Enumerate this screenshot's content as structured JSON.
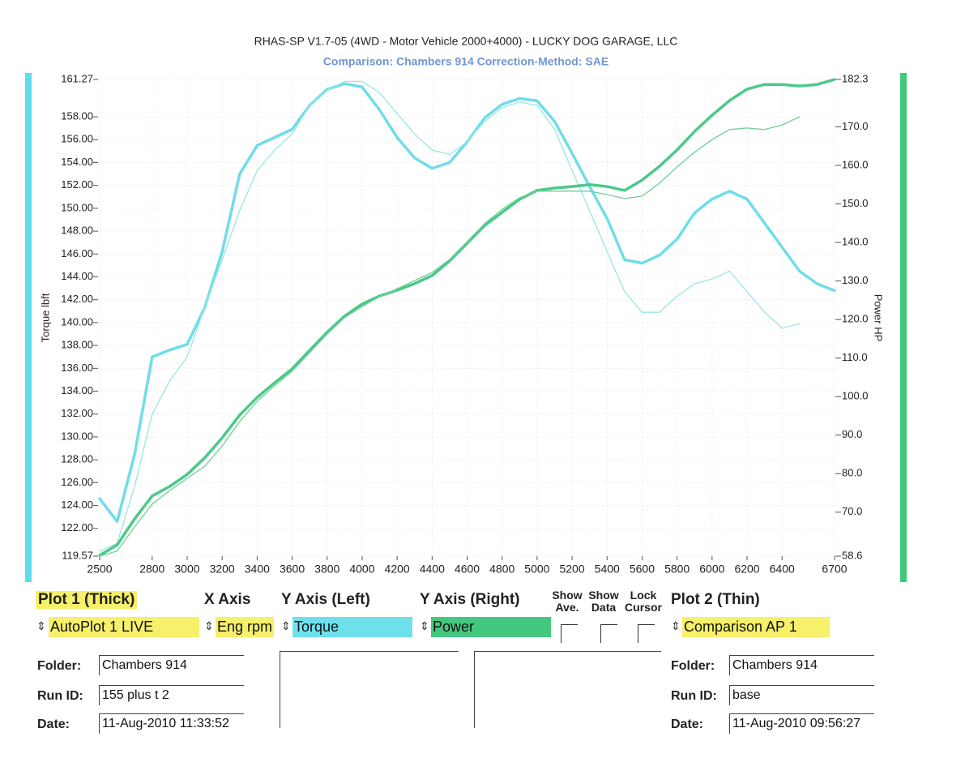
{
  "chart_data": {
    "type": "line",
    "title": "RHAS-SP V1.7-05   (4WD - Motor Vehicle 2000+4000) - LUCKY DOG GARAGE, LLC",
    "subtitle": "Comparison: Chambers 914    Correction-Method: SAE",
    "ylabel": "Torque lbft",
    "y2label": "Power HP",
    "x": [
      2500,
      2600,
      2700,
      2800,
      2900,
      3000,
      3100,
      3200,
      3300,
      3400,
      3500,
      3600,
      3700,
      3800,
      3900,
      4000,
      4100,
      4200,
      4300,
      4400,
      4500,
      4600,
      4700,
      4800,
      4900,
      5000,
      5100,
      5200,
      5300,
      5400,
      5500,
      5600,
      5700,
      5800,
      5900,
      6000,
      6100,
      6200,
      6300,
      6400,
      6500,
      6600,
      6700
    ],
    "xlim": [
      2500,
      6700
    ],
    "xticks": [
      2500,
      2800,
      3000,
      3200,
      3400,
      3600,
      3800,
      4000,
      4200,
      4400,
      4600,
      4800,
      5000,
      5200,
      5400,
      5600,
      5800,
      6000,
      6200,
      6400,
      6700
    ],
    "ylim": [
      119.57,
      161.27
    ],
    "yticks": [
      119.57,
      {
        "value": 122,
        "label": "122.00"
      },
      {
        "value": 124,
        "label": "124.00"
      },
      {
        "value": 126,
        "label": "126.00"
      },
      {
        "value": 128,
        "label": "128.00"
      },
      {
        "value": 130,
        "label": "130.00"
      },
      {
        "value": 132,
        "label": "132.00"
      },
      {
        "value": 134,
        "label": "134.00"
      },
      {
        "value": 136,
        "label": "136.00"
      },
      {
        "value": 138,
        "label": "138.00"
      },
      {
        "value": 140,
        "label": "140.00"
      },
      {
        "value": 142,
        "label": "142.00"
      },
      {
        "value": 144,
        "label": "144.00"
      },
      {
        "value": 146,
        "label": "146.00"
      },
      {
        "value": 148,
        "label": "148.00"
      },
      {
        "value": 150,
        "label": "150.00"
      },
      {
        "value": 152,
        "label": "152.00"
      },
      {
        "value": 154,
        "label": "154.00"
      },
      {
        "value": 156,
        "label": "156.00"
      },
      {
        "value": 158,
        "label": "158.00"
      },
      161.27
    ],
    "y2lim": [
      58.6,
      182.3
    ],
    "y2ticks": [
      58.6,
      {
        "value": 70,
        "label": "70.0"
      },
      {
        "value": 80,
        "label": "80.0"
      },
      {
        "value": 90,
        "label": "90.0"
      },
      {
        "value": 100,
        "label": "100.0"
      },
      {
        "value": 110,
        "label": "110.0"
      },
      {
        "value": 120,
        "label": "120.0"
      },
      {
        "value": 130,
        "label": "130.0"
      },
      {
        "value": 140,
        "label": "140.0"
      },
      {
        "value": 150,
        "label": "150.0"
      },
      {
        "value": 160,
        "label": "160.0"
      },
      {
        "value": 170,
        "label": "170.0"
      },
      182.3
    ],
    "grid": true,
    "series": [
      {
        "color": "#70dde9",
        "width": 3.5,
        "values": [
          124.6,
          122.6,
          128.5,
          137.0,
          137.6,
          138.1,
          141.3,
          146.2,
          153.0,
          155.5,
          156.2,
          156.9,
          159.0,
          160.4,
          160.9,
          160.6,
          158.6,
          156.2,
          154.4,
          153.5,
          154.0,
          155.8,
          157.9,
          159.1,
          159.6,
          159.4,
          157.6,
          154.8,
          151.9,
          149.1,
          145.5,
          145.2,
          145.9,
          147.3,
          149.6,
          150.8,
          151.5,
          150.8,
          148.7,
          146.6,
          144.5,
          143.4,
          142.8
        ]
      },
      {
        "color": "#98e6e6",
        "width": 1.3,
        "values": [
          120.0,
          120.7,
          125.7,
          132.0,
          134.9,
          137.0,
          141.3,
          145.5,
          149.8,
          153.3,
          155.1,
          156.5,
          159.0,
          160.3,
          161.1,
          161.1,
          160.1,
          158.3,
          156.5,
          155.1,
          154.7,
          155.8,
          157.6,
          158.8,
          159.3,
          159.0,
          156.9,
          153.3,
          149.8,
          146.2,
          142.7,
          140.9,
          140.9,
          142.3,
          143.4,
          143.8,
          144.5,
          142.7,
          140.9,
          139.5,
          139.9,
          null,
          null
        ]
      },
      {
        "color": "#4cc98a",
        "width": 3.5,
        "axis": "y2",
        "values": [
          58.8,
          61.5,
          68.3,
          74.2,
          76.7,
          79.8,
          84.1,
          89.3,
          95.2,
          99.8,
          103.6,
          107.2,
          112.0,
          116.7,
          120.9,
          124.0,
          126.1,
          127.6,
          129.3,
          131.4,
          135.2,
          139.8,
          144.4,
          147.8,
          151.2,
          153.5,
          154.1,
          154.5,
          155.0,
          154.5,
          153.5,
          156.2,
          159.8,
          164.0,
          168.8,
          173.0,
          176.8,
          179.8,
          181.0,
          181.0,
          180.6,
          181.0,
          182.3
        ]
      },
      {
        "color": "#6fd096",
        "width": 1.3,
        "axis": "y2",
        "values": [
          58.6,
          59.9,
          66.2,
          72.1,
          75.6,
          78.8,
          81.9,
          87.2,
          93.5,
          98.8,
          102.8,
          106.6,
          111.4,
          116.2,
          120.5,
          123.4,
          125.9,
          128.0,
          130.1,
          132.2,
          135.6,
          140.2,
          144.9,
          148.6,
          151.6,
          153.3,
          153.3,
          153.3,
          153.3,
          152.4,
          151.4,
          152.0,
          155.4,
          159.6,
          163.4,
          166.7,
          169.3,
          169.7,
          169.3,
          170.5,
          172.6,
          null,
          null
        ]
      }
    ]
  },
  "panel": {
    "plot1_heading": "Plot 1 (Thick)",
    "xaxis_heading": "X Axis",
    "yleft_heading": "Y Axis (Left)",
    "yright_heading": "Y Axis (Right)",
    "show_ave": "Show Ave.",
    "show_data": "Show Data",
    "lock_cursor": "Lock Cursor",
    "plot2_heading": "Plot 2 (Thin)",
    "plot1_select": "AutoPlot 1 LIVE",
    "xaxis_select": "Eng rpm",
    "yleft_select": "Torque",
    "yright_select": "Power",
    "plot2_select": "Comparison AP 1",
    "plot1_fields": [
      [
        "Folder:",
        "Chambers 914"
      ],
      [
        "Run ID:",
        "155 plus t 2"
      ],
      [
        "Date:",
        "11-Aug-2010  11:33:52"
      ]
    ],
    "plot2_fields": [
      [
        "Folder:",
        "Chambers 914"
      ],
      [
        "Run ID:",
        "base"
      ],
      [
        "Date:",
        "11-Aug-2010  09:56:27"
      ]
    ]
  }
}
